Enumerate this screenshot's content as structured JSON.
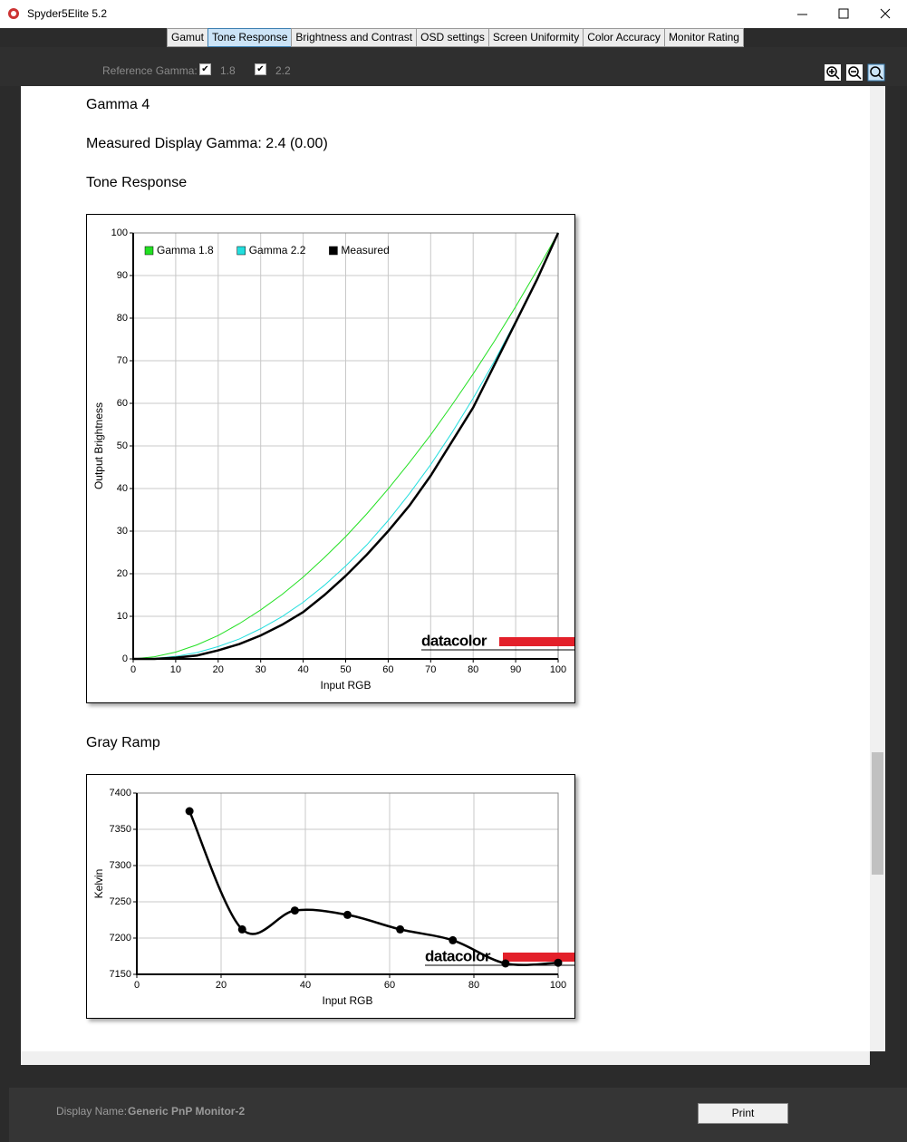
{
  "window": {
    "title": "Spyder5Elite 5.2"
  },
  "tabs": [
    "Gamut",
    "Tone Response",
    "Brightness and Contrast",
    "OSD settings",
    "Screen Uniformity",
    "Color Accuracy",
    "Monitor Rating"
  ],
  "active_tab": 1,
  "toolbar": {
    "reference_gamma_label": "Reference Gamma:",
    "options": [
      {
        "label": "1.8",
        "checked": true
      },
      {
        "label": "2.2",
        "checked": true
      }
    ]
  },
  "content": {
    "heading": "Gamma 4",
    "measured": "Measured Display Gamma: 2.4 (0.00)",
    "tone_section": "Tone Response",
    "gray_section": "Gray Ramp"
  },
  "logo": "datacolor",
  "chart_data": [
    {
      "type": "line",
      "xlabel": "Input RGB",
      "ylabel": "Output Brightness",
      "x": [
        0,
        5,
        10,
        15,
        20,
        25,
        30,
        35,
        40,
        45,
        50,
        55,
        60,
        65,
        70,
        75,
        80,
        85,
        90,
        95,
        100
      ],
      "series": [
        {
          "name": "Gamma 1.8",
          "color": "#22e022",
          "width": 1,
          "values": [
            0,
            0.5,
            1.6,
            3.3,
            5.5,
            8.3,
            11.5,
            15.1,
            19.2,
            23.8,
            28.7,
            34.1,
            39.9,
            46.1,
            52.6,
            59.6,
            66.9,
            74.6,
            82.7,
            91.2,
            100
          ]
        },
        {
          "name": "Gamma 2.2",
          "color": "#22dede",
          "width": 1,
          "values": [
            0,
            0.1,
            0.6,
            1.5,
            2.9,
            4.7,
            7.1,
            9.9,
            13.3,
            17.3,
            21.8,
            26.8,
            32.5,
            38.8,
            45.6,
            53.1,
            61.2,
            69.9,
            79.3,
            89.3,
            100
          ]
        },
        {
          "name": "Measured",
          "color": "#000000",
          "width": 2.5,
          "values": [
            0,
            0,
            0.3,
            0.8,
            2,
            3.5,
            5.5,
            8,
            11,
            15,
            19.5,
            24.5,
            30,
            36,
            43,
            51,
            59,
            69,
            79,
            89,
            100
          ]
        }
      ],
      "xlim": [
        0,
        100
      ],
      "xticks": [
        0,
        10,
        20,
        30,
        40,
        50,
        60,
        70,
        80,
        90,
        100
      ],
      "ylim": [
        0,
        100
      ],
      "yticks": [
        0,
        10,
        20,
        30,
        40,
        50,
        60,
        70,
        80,
        90,
        100
      ],
      "grid": true,
      "legend": "upper left",
      "smooth": false,
      "markers": false
    },
    {
      "type": "line",
      "xlabel": "Input RGB",
      "ylabel": "Kelvin",
      "x": [
        12.5,
        25,
        37.5,
        50,
        62.5,
        75,
        87.5,
        100
      ],
      "series": [
        {
          "color": "#000000",
          "width": 2.5,
          "values": [
            7375,
            7212,
            7238,
            7232,
            7212,
            7197,
            7165,
            7166
          ]
        }
      ],
      "xlim": [
        0,
        100
      ],
      "xticks": [
        0,
        20,
        40,
        60,
        80,
        100
      ],
      "ylim": [
        7150,
        7400
      ],
      "yticks": [
        7150,
        7200,
        7250,
        7300,
        7350,
        7400
      ],
      "grid": true,
      "smooth": true,
      "markers": true
    }
  ],
  "footer": {
    "display_name_label": "Display Name:",
    "display_name": "Generic PnP Monitor-2",
    "print_button": "Print"
  }
}
